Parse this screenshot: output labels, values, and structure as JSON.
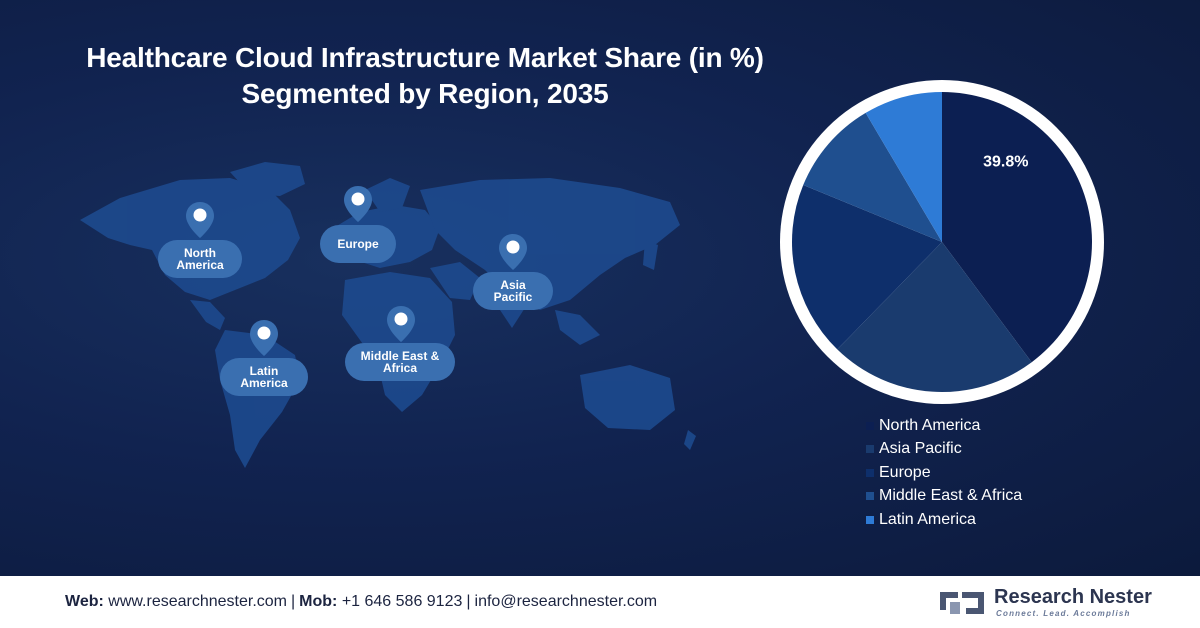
{
  "title": {
    "line1": "Healthcare Cloud Infrastructure  Market Share (in %)",
    "line2": "Segmented by Region, 2035"
  },
  "map": {
    "regions": [
      {
        "name": "North America"
      },
      {
        "name": "Europe"
      },
      {
        "name": "Asia Pacific"
      },
      {
        "name": "Latin America"
      },
      {
        "name": "Middle East & Africa"
      }
    ]
  },
  "chart_data": {
    "type": "pie",
    "title": "Healthcare Cloud Infrastructure  Market Share (in %) Segmented by Region, 2035",
    "categories": [
      "North America",
      "Asia Pacific",
      "Europe",
      "Middle East & Africa",
      "Latin America"
    ],
    "values": [
      39.8,
      22.5,
      18.9,
      10.3,
      8.5
    ],
    "data_labels": [
      "39.8%",
      "",
      "",
      "",
      ""
    ],
    "colors": [
      "#0c1f52",
      "#1a3b6e",
      "#0e2f6b",
      "#1f4f8f",
      "#2e7bd6"
    ],
    "legend_position": "bottom-right"
  },
  "footer": {
    "web_label": "Web:",
    "web_value": "www.researchnester.com",
    "mob_label": "Mob:",
    "mob_value": "+1 646 586 9123",
    "email": "info@researchnester.com",
    "separator": "|"
  },
  "logo": {
    "name": "Research Nester",
    "tagline": "Connect. Lead. Accomplish"
  },
  "colors": {
    "background": "#112350",
    "pin_label": "#3a6fb0",
    "footer_bg": "#ffffff"
  }
}
